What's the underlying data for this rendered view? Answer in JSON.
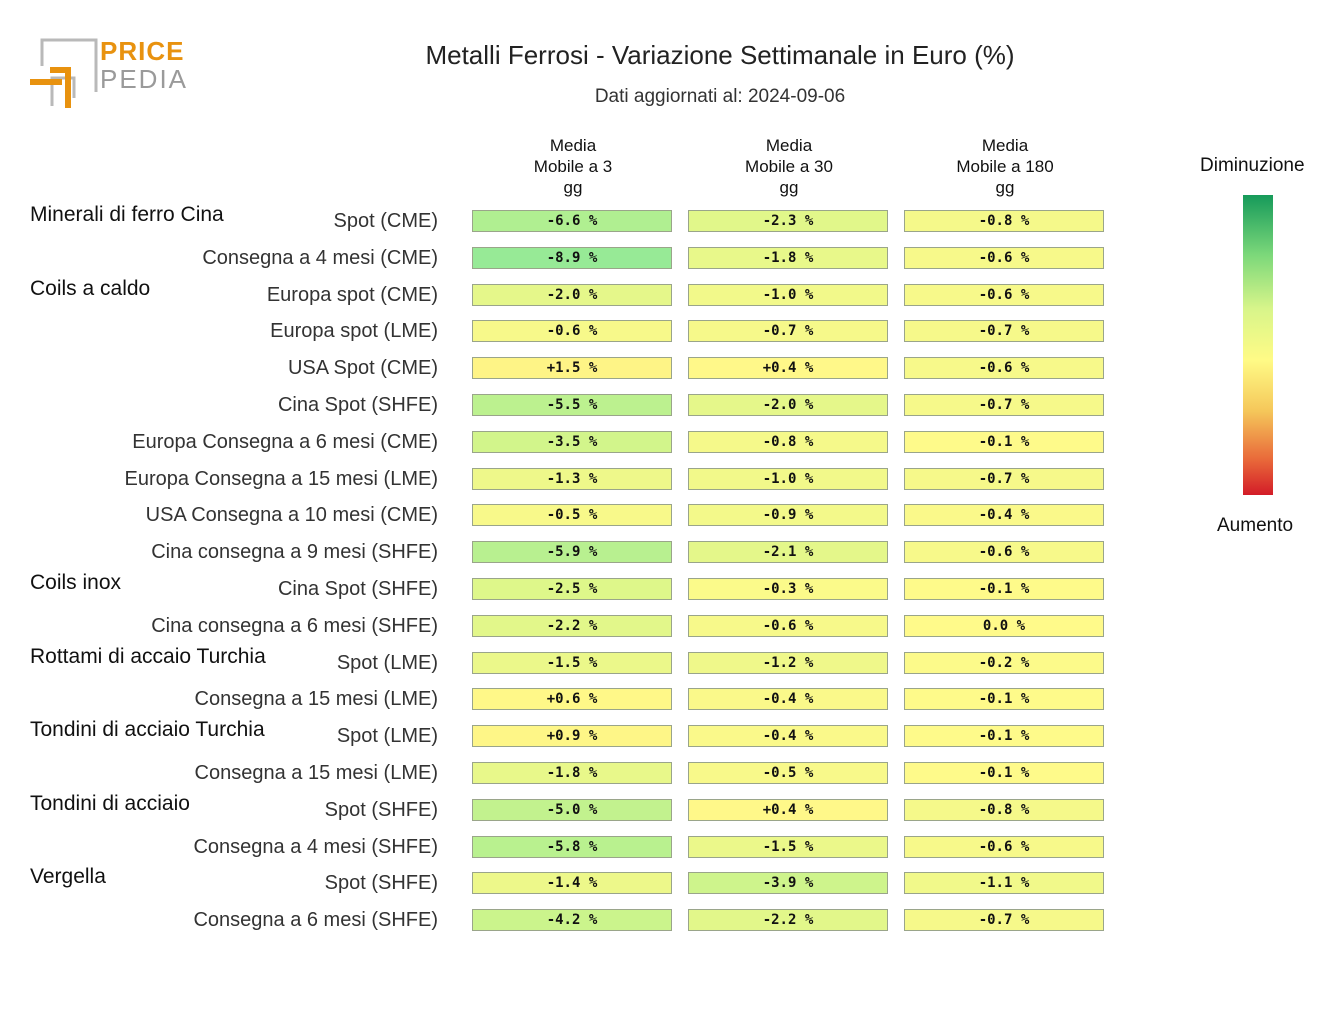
{
  "logo": {
    "line1": "PRICE",
    "line2": "PEDIA"
  },
  "title": "Metalli Ferrosi - Variazione Settimanale in Euro (%)",
  "subtitle": "Dati aggiornati al: 2024-09-06",
  "legend": {
    "top": "Diminuzione",
    "bottom": "Aumento"
  },
  "colors": {
    "decrease": "#169a5a",
    "neutral": "#fffb86",
    "increase": "#d31c28"
  },
  "chart_data": {
    "type": "table",
    "columns": [
      [
        "Media",
        "Mobile a 3",
        "gg"
      ],
      [
        "Media",
        "Mobile a 30",
        "gg"
      ],
      [
        "Media",
        "Mobile a 180",
        "gg"
      ]
    ],
    "rows": [
      {
        "group": "Minerali di ferro Cina",
        "label": "Spot (CME)",
        "values": [
          -6.6,
          -2.3,
          -0.8
        ],
        "text": [
          "-6.6 %",
          "-2.3 %",
          "-0.8 %"
        ]
      },
      {
        "group": "",
        "label": "Consegna a 4 mesi (CME)",
        "values": [
          -8.9,
          -1.8,
          -0.6
        ],
        "text": [
          "-8.9 %",
          "-1.8 %",
          "-0.6 %"
        ]
      },
      {
        "group": "Coils a caldo",
        "label": "Europa spot (CME)",
        "values": [
          -2.0,
          -1.0,
          -0.6
        ],
        "text": [
          "-2.0 %",
          "-1.0 %",
          "-0.6 %"
        ]
      },
      {
        "group": "",
        "label": "Europa spot (LME)",
        "values": [
          -0.6,
          -0.7,
          -0.7
        ],
        "text": [
          "-0.6 %",
          "-0.7 %",
          "-0.7 %"
        ]
      },
      {
        "group": "",
        "label": "USA Spot (CME)",
        "values": [
          1.5,
          0.4,
          -0.6
        ],
        "text": [
          "+1.5 %",
          "+0.4 %",
          "-0.6 %"
        ]
      },
      {
        "group": "",
        "label": "Cina Spot (SHFE)",
        "values": [
          -5.5,
          -2.0,
          -0.7
        ],
        "text": [
          "-5.5 %",
          "-2.0 %",
          "-0.7 %"
        ]
      },
      {
        "group": "",
        "label": "Europa Consegna a 6 mesi (CME)",
        "values": [
          -3.5,
          -0.8,
          -0.1
        ],
        "text": [
          "-3.5 %",
          "-0.8 %",
          "-0.1 %"
        ]
      },
      {
        "group": "",
        "label": "Europa Consegna a 15 mesi (LME)",
        "values": [
          -1.3,
          -1.0,
          -0.7
        ],
        "text": [
          "-1.3 %",
          "-1.0 %",
          "-0.7 %"
        ]
      },
      {
        "group": "",
        "label": "USA Consegna a 10 mesi (CME)",
        "values": [
          -0.5,
          -0.9,
          -0.4
        ],
        "text": [
          "-0.5 %",
          "-0.9 %",
          "-0.4 %"
        ]
      },
      {
        "group": "",
        "label": "Cina consegna a 9 mesi (SHFE)",
        "values": [
          -5.9,
          -2.1,
          -0.6
        ],
        "text": [
          "-5.9 %",
          "-2.1 %",
          "-0.6 %"
        ]
      },
      {
        "group": "Coils inox",
        "label": "Cina Spot (SHFE)",
        "values": [
          -2.5,
          -0.3,
          -0.1
        ],
        "text": [
          "-2.5 %",
          "-0.3 %",
          "-0.1 %"
        ]
      },
      {
        "group": "",
        "label": "Cina consegna a 6 mesi (SHFE)",
        "values": [
          -2.2,
          -0.6,
          0.0
        ],
        "text": [
          "-2.2 %",
          "-0.6 %",
          "0.0 %"
        ]
      },
      {
        "group": "Rottami di accaio Turchia",
        "label": "Spot (LME)",
        "values": [
          -1.5,
          -1.2,
          -0.2
        ],
        "text": [
          "-1.5 %",
          "-1.2 %",
          "-0.2 %"
        ]
      },
      {
        "group": "",
        "label": "Consegna a 15 mesi (LME)",
        "values": [
          0.6,
          -0.4,
          -0.1
        ],
        "text": [
          "+0.6 %",
          "-0.4 %",
          "-0.1 %"
        ]
      },
      {
        "group": "Tondini di acciaio Turchia",
        "label": "Spot (LME)",
        "values": [
          0.9,
          -0.4,
          -0.1
        ],
        "text": [
          "+0.9 %",
          "-0.4 %",
          "-0.1 %"
        ]
      },
      {
        "group": "",
        "label": "Consegna a 15 mesi (LME)",
        "values": [
          -1.8,
          -0.5,
          -0.1
        ],
        "text": [
          "-1.8 %",
          "-0.5 %",
          "-0.1 %"
        ]
      },
      {
        "group": "Tondini di acciaio",
        "label": "Spot (SHFE)",
        "values": [
          -5.0,
          0.4,
          -0.8
        ],
        "text": [
          "-5.0 %",
          "+0.4 %",
          "-0.8 %"
        ]
      },
      {
        "group": "",
        "label": "Consegna a 4 mesi (SHFE)",
        "values": [
          -5.8,
          -1.5,
          -0.6
        ],
        "text": [
          "-5.8 %",
          "-1.5 %",
          "-0.6 %"
        ]
      },
      {
        "group": "Vergella",
        "label": "Spot (SHFE)",
        "values": [
          -1.4,
          -3.9,
          -1.1
        ],
        "text": [
          "-1.4 %",
          "-3.9 %",
          "-1.1 %"
        ]
      },
      {
        "group": "",
        "label": "Consegna a 6 mesi (SHFE)",
        "values": [
          -4.2,
          -2.2,
          -0.7
        ],
        "text": [
          "-4.2 %",
          "-2.2 %",
          "-0.7 %"
        ]
      }
    ]
  }
}
